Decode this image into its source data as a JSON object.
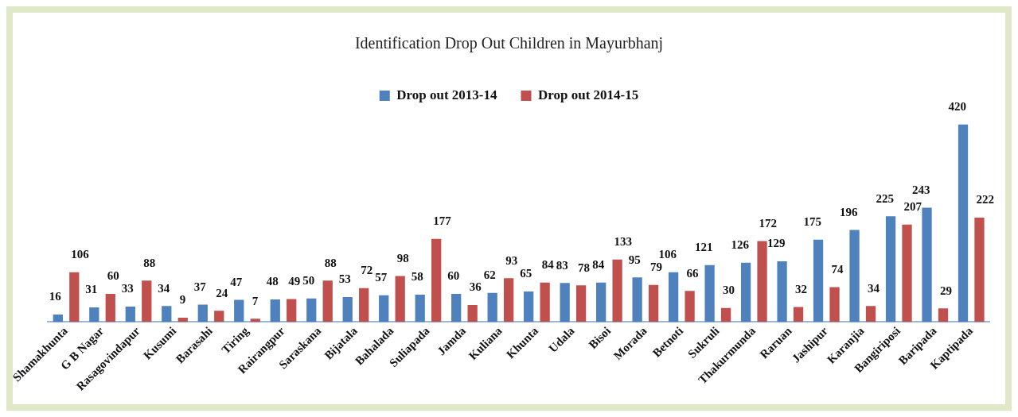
{
  "chart_data": {
    "type": "bar",
    "title": "Identification Drop Out Children in Mayurbhanj",
    "categories": [
      "Shamakhunta",
      "G B Nagar",
      "Rasagovindapur",
      "Kusumi",
      "Barasahi",
      "Tiring",
      "Rairangpur",
      "Saraskana",
      "Bijatala",
      "Bahalada",
      "Suliapada",
      "Jamda",
      "Kuliana",
      "Khunta",
      "Udala",
      "Bisoi",
      "Morada",
      "Betnoti",
      "Sukruli",
      "Thakurmunda",
      "Raruan",
      "Jashipur",
      "Karanjia",
      "Bangiriposi",
      "Baripada",
      "Kaptipada"
    ],
    "series": [
      {
        "name": "Drop out 2013-14",
        "color": "#4f81bd",
        "values": [
          16,
          31,
          33,
          34,
          37,
          47,
          48,
          50,
          53,
          57,
          58,
          60,
          62,
          65,
          83,
          84,
          95,
          106,
          121,
          126,
          129,
          175,
          196,
          225,
          243,
          420
        ]
      },
      {
        "name": "Drop out 2014-15",
        "color": "#c0504d",
        "values": [
          106,
          60,
          88,
          9,
          24,
          7,
          49,
          88,
          72,
          98,
          177,
          36,
          93,
          84,
          78,
          133,
          79,
          66,
          30,
          172,
          32,
          74,
          34,
          207,
          29,
          222
        ]
      }
    ],
    "data_labels": true,
    "legend": "top",
    "grid": false
  }
}
